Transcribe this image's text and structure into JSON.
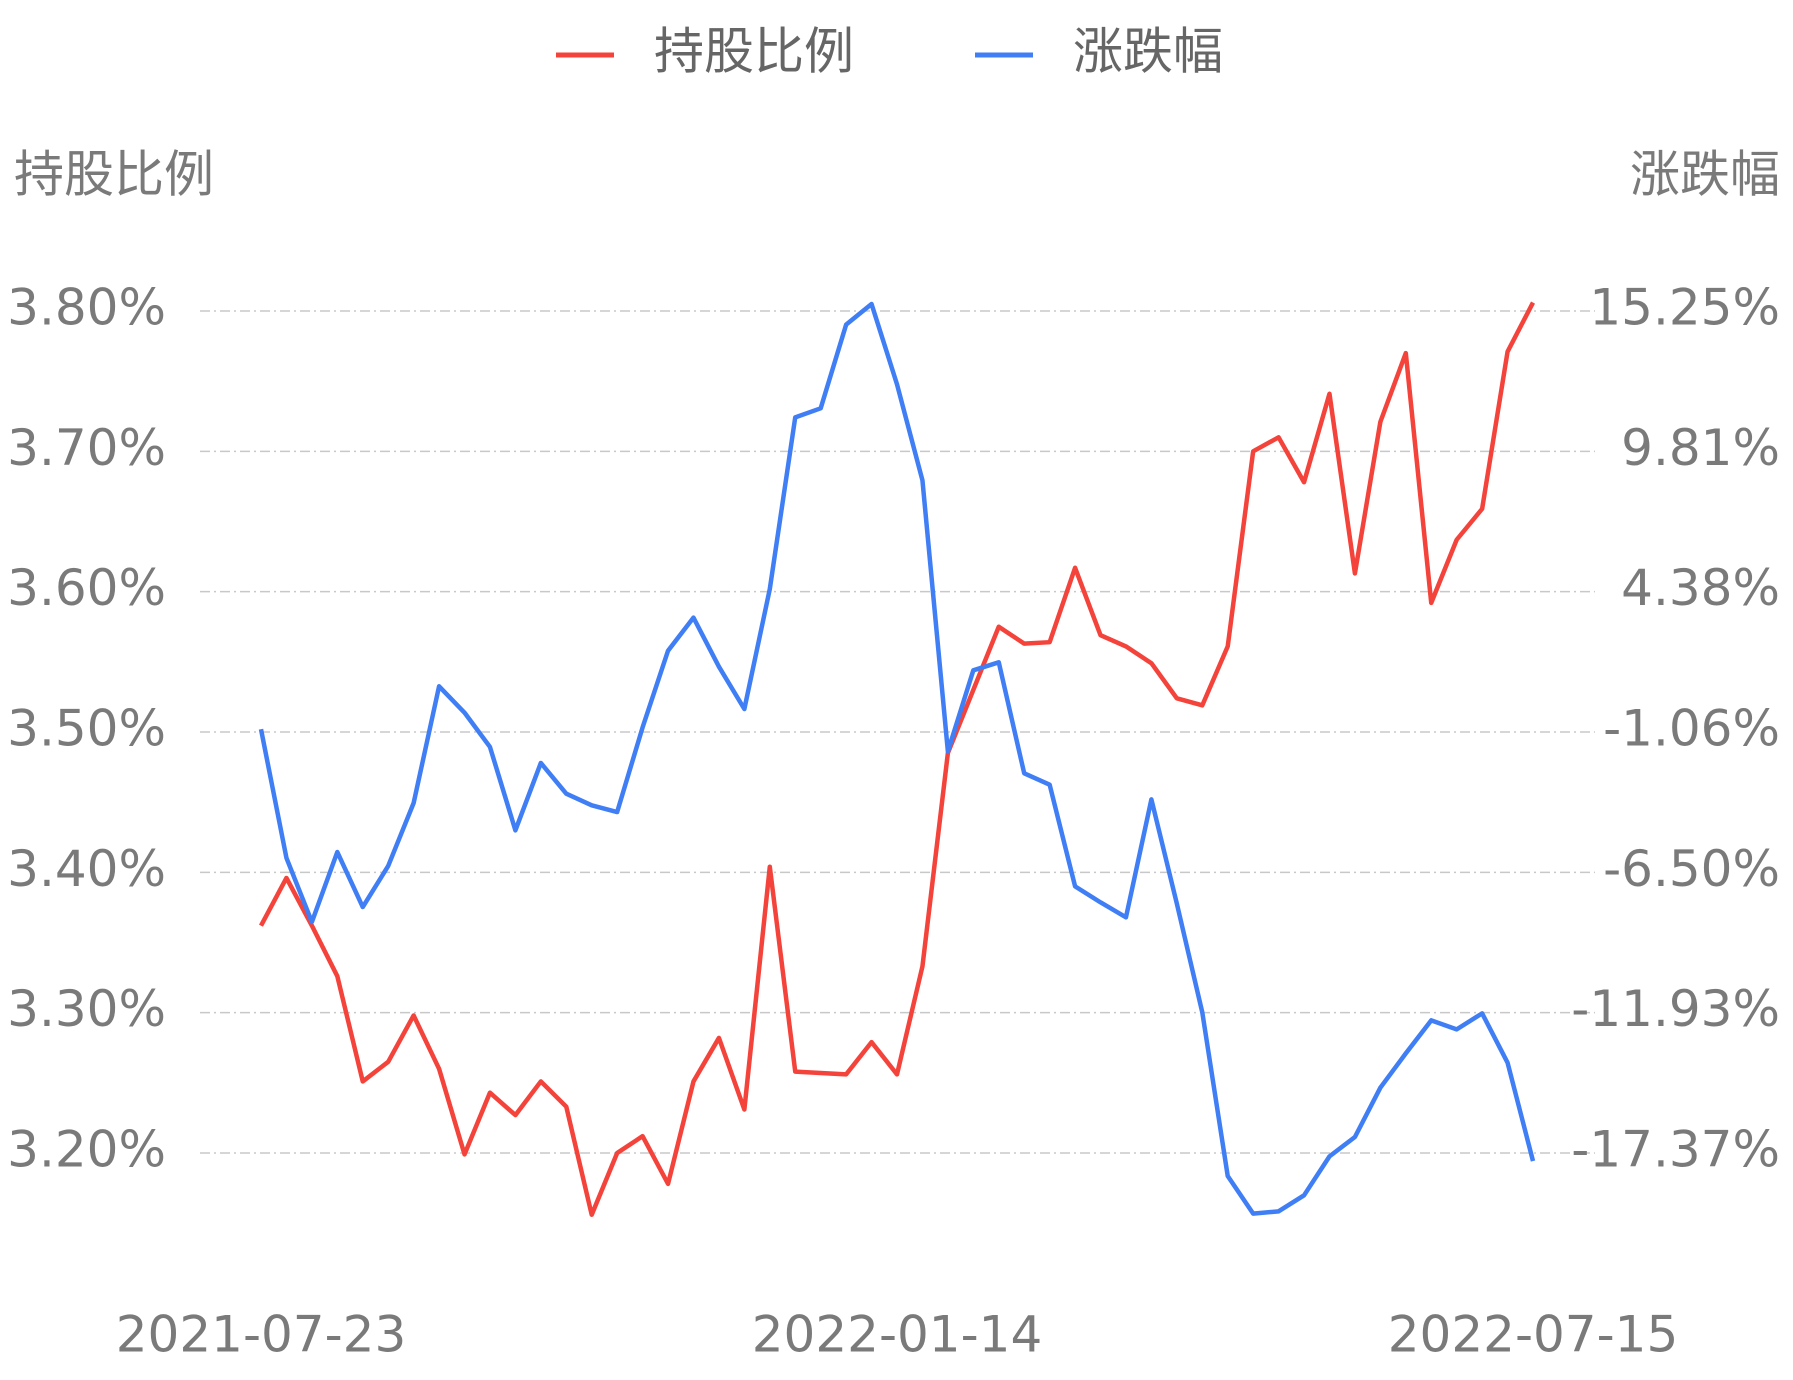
{
  "chart_data": {
    "type": "line",
    "y_label": "持股比例",
    "y2_label": "涨跌幅",
    "categories": [
      "2021-07-23",
      null,
      null,
      null,
      null,
      null,
      null,
      null,
      null,
      null,
      null,
      null,
      null,
      null,
      null,
      null,
      null,
      null,
      null,
      null,
      null,
      null,
      null,
      null,
      null,
      "2022-01-14",
      null,
      null,
      null,
      null,
      null,
      null,
      null,
      null,
      null,
      null,
      null,
      null,
      null,
      null,
      null,
      null,
      null,
      null,
      null,
      null,
      null,
      null,
      null,
      null,
      "2022-07-15"
    ],
    "series": [
      {
        "name": "持股比例",
        "color": "#f4433a",
        "axis": "y",
        "values": [
          3.362,
          3.396,
          3.362,
          3.326,
          3.251,
          3.265,
          3.298,
          3.26,
          3.199,
          3.243,
          3.227,
          3.251,
          3.233,
          3.156,
          3.2,
          3.212,
          3.178,
          3.251,
          3.282,
          3.231,
          3.404,
          3.258,
          3.257,
          3.256,
          3.279,
          3.256,
          3.333,
          3.485,
          3.53,
          3.575,
          3.563,
          3.564,
          3.617,
          3.569,
          3.561,
          3.549,
          3.524,
          3.519,
          3.561,
          3.7,
          3.71,
          3.678,
          3.741,
          3.613,
          3.721,
          3.77,
          3.592,
          3.637,
          3.659,
          3.771,
          3.806
        ]
      },
      {
        "name": "涨跌幅",
        "color": "#3f7ef4",
        "axis": "y2",
        "values": [
          -0.95,
          -5.94,
          -8.42,
          -5.71,
          -7.84,
          -6.25,
          -3.81,
          0.71,
          -0.31,
          -1.64,
          -4.87,
          -2.26,
          -3.45,
          -3.9,
          -4.16,
          -0.88,
          2.09,
          3.37,
          1.47,
          -0.17,
          4.48,
          11.13,
          11.48,
          14.72,
          15.52,
          12.41,
          8.69,
          -1.81,
          1.33,
          1.64,
          -2.66,
          -3.1,
          -7.04,
          -7.66,
          -8.24,
          -3.67,
          -7.71,
          -11.92,
          -18.26,
          -19.72,
          -19.63,
          -19.01,
          -17.5,
          -16.75,
          -14.84,
          -13.51,
          -12.23,
          -12.58,
          -11.96,
          -13.87,
          -17.68
        ]
      }
    ],
    "ylim": [
      3.2,
      3.8
    ],
    "yticks": [
      {
        "value": 3.8,
        "label": "3.80%"
      },
      {
        "value": 3.7,
        "label": "3.70%"
      },
      {
        "value": 3.6,
        "label": "3.60%"
      },
      {
        "value": 3.5,
        "label": "3.50%"
      },
      {
        "value": 3.4,
        "label": "3.40%"
      },
      {
        "value": 3.3,
        "label": "3.30%"
      },
      {
        "value": 3.2,
        "label": "3.20%"
      }
    ],
    "y2lim": [
      -17.37,
      15.25
    ],
    "y2ticks": [
      {
        "value": 15.25,
        "label": "15.25%"
      },
      {
        "value": 9.81,
        "label": "9.81%"
      },
      {
        "value": 4.38,
        "label": "4.38%"
      },
      {
        "value": -1.06,
        "label": "-1.06%"
      },
      {
        "value": -6.5,
        "label": "-6.50%"
      },
      {
        "value": -11.93,
        "label": "-11.93%"
      },
      {
        "value": -17.37,
        "label": "-17.37%"
      }
    ],
    "grid": true,
    "legend": "top"
  }
}
